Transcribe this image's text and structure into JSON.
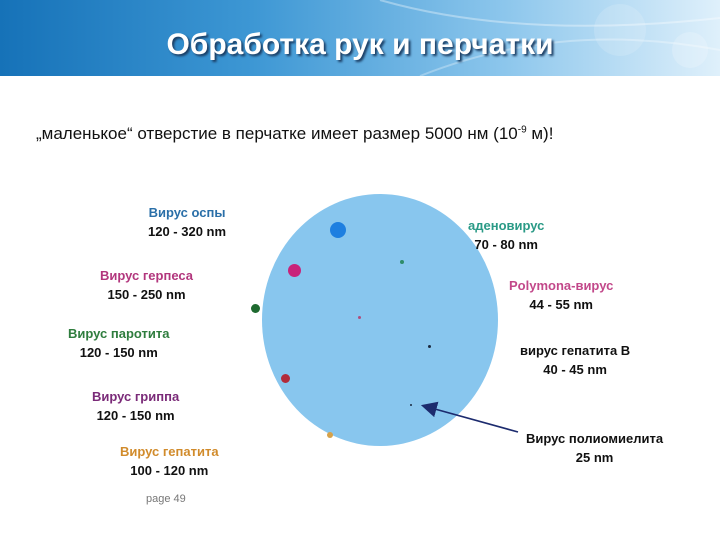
{
  "slide": {
    "title": "Обработка рук и перчатки",
    "subtitle_main": "„маленькое“ отверстие в перчатке имеет размер 5000 нм (10",
    "subtitle_exp": "-9",
    "subtitle_end": " м)!",
    "page_label": "page 49"
  },
  "viruses": [
    {
      "name": "Вирус оспы",
      "size": "120 - 320 nm",
      "color": "#2a6fa8"
    },
    {
      "name": "Вирус герпеса",
      "size": "150 - 250 nm",
      "color": "#b2367d"
    },
    {
      "name": "Вирус паротита",
      "size": "120 - 150 nm",
      "color": "#2f7d3e"
    },
    {
      "name": "Вирус гриппа",
      "size": "120 - 150 nm",
      "color": "#7a2a78"
    },
    {
      "name": "Вирус гепатита",
      "size": "100 - 120 nm",
      "color": "#d18b2b"
    },
    {
      "name": "аденовирус",
      "size": "70 - 80 nm",
      "color": "#2a9a86"
    },
    {
      "name": "Polymona-вирус",
      "size": "44 - 55 nm",
      "color": "#c2488a"
    },
    {
      "name": "вирус гепатита В",
      "size": "40 - 45 nm",
      "color": "#111111"
    },
    {
      "name": "Вирус полиомиелита",
      "size": "25 nm",
      "color": "#111111"
    }
  ],
  "colors": {
    "circle": "#88c6ee",
    "dot_smallpox": "#1e7fe0",
    "dot_herpes": "#c8237a",
    "dot_mumps": "#1f6a30",
    "dot_flu": "#b22b3a",
    "dot_hepatitis": "#d6a24a",
    "dot_adeno": "#2e8c6a",
    "dot_polyoma": "#b04c7c",
    "dot_hepb": "#1a2a40",
    "dot_polio": "#1a2a40",
    "arrow": "#1c2b6e"
  }
}
